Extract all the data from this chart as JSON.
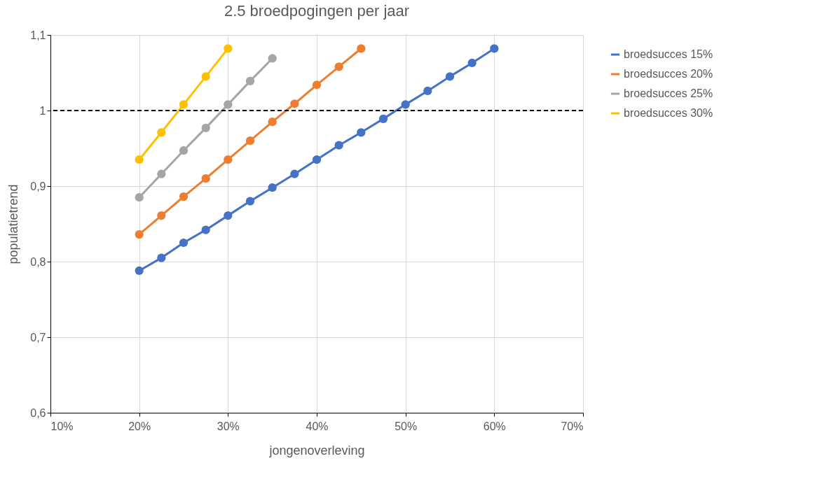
{
  "chart_data": {
    "type": "line",
    "title": "2.5 broedpogingen per jaar",
    "xlabel": "jongenoverleving",
    "ylabel": "populatietrend",
    "xlim": [
      10,
      70
    ],
    "xticks": [
      {
        "value": 10,
        "label": "10%"
      },
      {
        "value": 20,
        "label": "20%"
      },
      {
        "value": 30,
        "label": "30%"
      },
      {
        "value": 40,
        "label": "40%"
      },
      {
        "value": 50,
        "label": "50%"
      },
      {
        "value": 60,
        "label": "60%"
      },
      {
        "value": 70,
        "label": "70%"
      }
    ],
    "ylim": [
      0.6,
      1.1
    ],
    "yticks": [
      {
        "value": 0.6,
        "label": "0,6"
      },
      {
        "value": 0.7,
        "label": "0,7"
      },
      {
        "value": 0.8,
        "label": "0,8"
      },
      {
        "value": 0.9,
        "label": "0,9"
      },
      {
        "value": 1,
        "label": "1"
      },
      {
        "value": 1.1,
        "label": "1,1"
      }
    ],
    "grid": true,
    "legend": "right",
    "marker": "circle",
    "line_style": "solid",
    "ref_lines": [
      {
        "axis": "y",
        "value": 1,
        "color": "#000000",
        "line_style": "dashed"
      }
    ],
    "series": [
      {
        "name": "broedsucces 15%",
        "color": "#4472c4",
        "x": [
          20,
          22.5,
          25,
          27.5,
          30,
          32.5,
          35,
          37.5,
          40,
          42.5,
          45,
          47.5,
          50,
          52.5,
          55,
          57.5,
          60
        ],
        "values": [
          0.788,
          0.805,
          0.825,
          0.842,
          0.861,
          0.88,
          0.898,
          0.916,
          0.935,
          0.954,
          0.971,
          0.989,
          1.008,
          1.026,
          1.045,
          1.063,
          1.082
        ]
      },
      {
        "name": "broedsucces 20%",
        "color": "#ed7d31",
        "x": [
          20,
          22.5,
          25,
          27.5,
          30,
          32.5,
          35,
          37.5,
          40,
          42.5,
          45
        ],
        "values": [
          0.836,
          0.861,
          0.886,
          0.91,
          0.935,
          0.96,
          0.985,
          1.009,
          1.034,
          1.058,
          1.082
        ]
      },
      {
        "name": "broedsucces 25%",
        "color": "#a5a5a5",
        "x": [
          20,
          22.5,
          25,
          27.5,
          30,
          32.5,
          35
        ],
        "values": [
          0.885,
          0.916,
          0.947,
          0.977,
          1.008,
          1.039,
          1.069
        ]
      },
      {
        "name": "broedsucces 30%",
        "color": "#ffc000",
        "x": [
          20,
          22.5,
          25,
          27.5,
          30
        ],
        "values": [
          0.935,
          0.971,
          1.008,
          1.045,
          1.082
        ]
      }
    ]
  }
}
